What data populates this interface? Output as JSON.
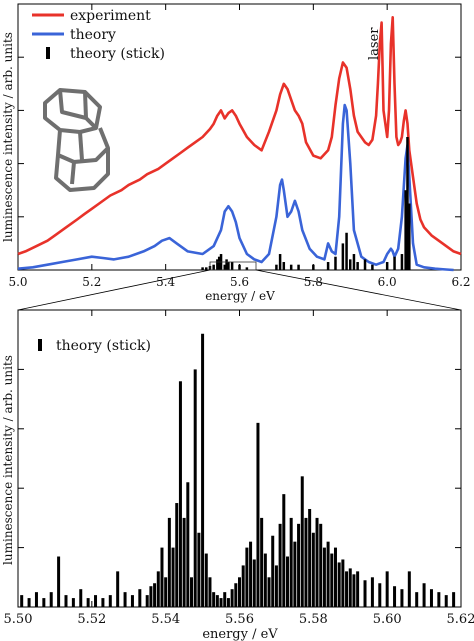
{
  "chart_data": [
    {
      "type": "line",
      "xlabel": "energy / eV",
      "ylabel": "luminescence intensity / arb. units",
      "xlim": [
        5.0,
        6.2
      ],
      "ylim": [
        0,
        1
      ],
      "xticks": [
        "5.0",
        "5.2",
        "5.4",
        "5.6",
        "5.8",
        "6.0",
        "6.2"
      ],
      "annotation": "laser",
      "legend_position": "top-left",
      "series": [
        {
          "name": "experiment",
          "color": "#e8322a",
          "x": [
            5.0,
            5.02,
            5.05,
            5.08,
            5.1,
            5.13,
            5.16,
            5.18,
            5.2,
            5.22,
            5.25,
            5.28,
            5.3,
            5.33,
            5.35,
            5.38,
            5.4,
            5.42,
            5.44,
            5.46,
            5.48,
            5.5,
            5.52,
            5.53,
            5.54,
            5.55,
            5.56,
            5.57,
            5.58,
            5.59,
            5.6,
            5.62,
            5.64,
            5.66,
            5.68,
            5.7,
            5.71,
            5.72,
            5.73,
            5.74,
            5.75,
            5.76,
            5.77,
            5.78,
            5.8,
            5.82,
            5.84,
            5.85,
            5.86,
            5.87,
            5.88,
            5.89,
            5.9,
            5.91,
            5.92,
            5.93,
            5.94,
            5.95,
            5.96,
            5.97,
            5.975,
            5.98,
            5.985,
            5.99,
            6.0,
            6.005,
            6.01,
            6.015,
            6.02,
            6.025,
            6.03,
            6.035,
            6.04,
            6.045,
            6.05,
            6.055,
            6.06,
            6.07,
            6.08,
            6.09,
            6.1,
            6.12,
            6.14,
            6.16,
            6.18,
            6.2
          ],
          "y": [
            0.06,
            0.07,
            0.09,
            0.11,
            0.13,
            0.16,
            0.19,
            0.21,
            0.23,
            0.25,
            0.28,
            0.3,
            0.32,
            0.34,
            0.36,
            0.38,
            0.4,
            0.42,
            0.44,
            0.46,
            0.48,
            0.5,
            0.53,
            0.55,
            0.58,
            0.6,
            0.57,
            0.59,
            0.6,
            0.58,
            0.55,
            0.5,
            0.47,
            0.45,
            0.52,
            0.6,
            0.66,
            0.7,
            0.68,
            0.64,
            0.6,
            0.58,
            0.55,
            0.48,
            0.43,
            0.42,
            0.45,
            0.5,
            0.62,
            0.72,
            0.78,
            0.76,
            0.68,
            0.58,
            0.52,
            0.5,
            0.48,
            0.47,
            0.49,
            0.58,
            0.7,
            0.85,
            0.93,
            0.6,
            0.5,
            0.6,
            0.85,
            0.95,
            0.7,
            0.5,
            0.47,
            0.48,
            0.5,
            0.56,
            0.6,
            0.55,
            0.45,
            0.35,
            0.25,
            0.19,
            0.16,
            0.13,
            0.11,
            0.09,
            0.07,
            0.06
          ]
        },
        {
          "name": "theory",
          "color": "#3a64d8",
          "x": [
            5.0,
            5.04,
            5.08,
            5.12,
            5.16,
            5.2,
            5.23,
            5.26,
            5.3,
            5.34,
            5.37,
            5.39,
            5.41,
            5.43,
            5.46,
            5.5,
            5.53,
            5.55,
            5.56,
            5.57,
            5.58,
            5.59,
            5.6,
            5.62,
            5.64,
            5.66,
            5.68,
            5.7,
            5.71,
            5.715,
            5.72,
            5.73,
            5.74,
            5.75,
            5.76,
            5.77,
            5.79,
            5.81,
            5.83,
            5.84,
            5.85,
            5.86,
            5.87,
            5.88,
            5.885,
            5.89,
            5.9,
            5.91,
            5.93,
            5.95,
            5.97,
            5.99,
            6.0,
            6.01,
            6.015,
            6.02,
            6.03,
            6.04,
            6.05,
            6.055,
            6.06,
            6.07,
            6.08,
            6.1,
            6.13,
            6.16,
            6.18
          ],
          "y": [
            0.005,
            0.01,
            0.02,
            0.03,
            0.04,
            0.05,
            0.045,
            0.04,
            0.05,
            0.07,
            0.09,
            0.11,
            0.12,
            0.1,
            0.07,
            0.06,
            0.09,
            0.15,
            0.22,
            0.24,
            0.22,
            0.18,
            0.12,
            0.06,
            0.04,
            0.03,
            0.06,
            0.2,
            0.32,
            0.34,
            0.3,
            0.2,
            0.22,
            0.26,
            0.22,
            0.15,
            0.08,
            0.05,
            0.04,
            0.1,
            0.07,
            0.06,
            0.2,
            0.55,
            0.62,
            0.6,
            0.4,
            0.15,
            0.05,
            0.03,
            0.02,
            0.03,
            0.06,
            0.08,
            0.07,
            0.05,
            0.08,
            0.2,
            0.42,
            0.47,
            0.35,
            0.1,
            0.02,
            0.01,
            0.005,
            0.002,
            0.0
          ]
        },
        {
          "name": "theory (stick)",
          "color": "#000000",
          "x": [
            5.5,
            5.51,
            5.52,
            5.53,
            5.54,
            5.545,
            5.55,
            5.56,
            5.565,
            5.57,
            5.58,
            5.6,
            5.62,
            5.7,
            5.71,
            5.72,
            5.74,
            5.76,
            5.8,
            5.84,
            5.86,
            5.88,
            5.89,
            5.9,
            5.91,
            5.92,
            5.94,
            5.96,
            6.0,
            6.02,
            6.04,
            6.05,
            6.055,
            6.06
          ],
          "y": [
            0.01,
            0.01,
            0.015,
            0.02,
            0.04,
            0.05,
            0.06,
            0.02,
            0.04,
            0.03,
            0.03,
            0.02,
            0.01,
            0.02,
            0.06,
            0.03,
            0.02,
            0.02,
            0.02,
            0.03,
            0.05,
            0.1,
            0.14,
            0.04,
            0.06,
            0.03,
            0.04,
            0.02,
            0.03,
            0.05,
            0.06,
            0.3,
            0.5,
            0.25
          ]
        }
      ]
    },
    {
      "type": "bar",
      "xlabel": "energy / eV",
      "ylabel": "luminescence intensity / arb. units",
      "xlim": [
        5.5,
        5.62
      ],
      "ylim": [
        0,
        1
      ],
      "xticks": [
        "5.50",
        "5.52",
        "5.54",
        "5.56",
        "5.58",
        "5.60",
        "5.62"
      ],
      "legend_position": "top-left",
      "series": [
        {
          "name": "theory (stick)",
          "color": "#000000",
          "x": [
            5.501,
            5.503,
            5.505,
            5.507,
            5.509,
            5.511,
            5.513,
            5.515,
            5.517,
            5.519,
            5.521,
            5.523,
            5.525,
            5.527,
            5.529,
            5.531,
            5.533,
            5.535,
            5.536,
            5.537,
            5.538,
            5.539,
            5.54,
            5.541,
            5.542,
            5.543,
            5.544,
            5.545,
            5.546,
            5.547,
            5.548,
            5.549,
            5.55,
            5.551,
            5.552,
            5.553,
            5.554,
            5.555,
            5.556,
            5.557,
            5.558,
            5.559,
            5.56,
            5.561,
            5.562,
            5.563,
            5.564,
            5.565,
            5.566,
            5.567,
            5.568,
            5.569,
            5.57,
            5.571,
            5.572,
            5.573,
            5.574,
            5.575,
            5.576,
            5.577,
            5.578,
            5.579,
            5.58,
            5.581,
            5.582,
            5.583,
            5.584,
            5.585,
            5.586,
            5.587,
            5.588,
            5.589,
            5.59,
            5.591,
            5.592,
            5.594,
            5.596,
            5.598,
            5.6,
            5.602,
            5.604,
            5.606,
            5.608,
            5.61,
            5.612,
            5.614,
            5.616,
            5.618
          ],
          "y": [
            0.04,
            0.03,
            0.05,
            0.03,
            0.05,
            0.17,
            0.04,
            0.03,
            0.06,
            0.03,
            0.04,
            0.03,
            0.04,
            0.12,
            0.05,
            0.04,
            0.06,
            0.04,
            0.07,
            0.08,
            0.12,
            0.2,
            0.1,
            0.3,
            0.2,
            0.35,
            0.76,
            0.3,
            0.42,
            0.1,
            0.8,
            0.25,
            0.92,
            0.18,
            0.1,
            0.05,
            0.04,
            0.03,
            0.05,
            0.03,
            0.06,
            0.08,
            0.1,
            0.14,
            0.2,
            0.22,
            0.16,
            0.62,
            0.3,
            0.18,
            0.1,
            0.24,
            0.14,
            0.28,
            0.38,
            0.17,
            0.3,
            0.22,
            0.28,
            0.44,
            0.3,
            0.33,
            0.25,
            0.3,
            0.28,
            0.2,
            0.22,
            0.18,
            0.2,
            0.15,
            0.16,
            0.12,
            0.13,
            0.11,
            0.12,
            0.09,
            0.1,
            0.08,
            0.12,
            0.07,
            0.06,
            0.12,
            0.05,
            0.08,
            0.06,
            0.05,
            0.04,
            0.05
          ]
        }
      ]
    }
  ]
}
